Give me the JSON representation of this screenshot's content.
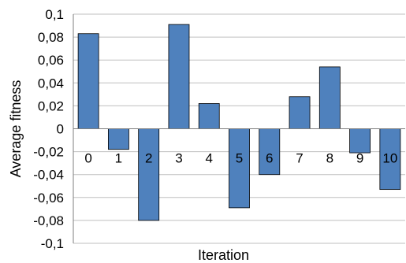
{
  "chart_data": {
    "type": "bar",
    "title": "",
    "xlabel": "Iteration",
    "ylabel": "Average fitness",
    "categories": [
      "0",
      "1",
      "2",
      "3",
      "4",
      "5",
      "6",
      "7",
      "8",
      "9",
      "10"
    ],
    "values": [
      0.083,
      -0.018,
      -0.08,
      0.091,
      0.022,
      -0.069,
      -0.04,
      0.028,
      0.054,
      -0.021,
      -0.053
    ],
    "ylim": [
      -0.1,
      0.1
    ],
    "yticks": [
      0.1,
      0.08,
      0.06,
      0.04,
      0.02,
      0,
      -0.02,
      -0.04,
      -0.06,
      -0.08,
      -0.1
    ],
    "ytick_labels": [
      "0,1",
      "0,08",
      "0,06",
      "0,04",
      "0,02",
      "0",
      "-0,02",
      "-0,04",
      "-0,06",
      "-0,08",
      "-0,1"
    ],
    "grid": true,
    "legend": "none",
    "colors": {
      "bar_fill": "#4f81bd",
      "bar_stroke": "#000000",
      "grid": "#bfbfbf",
      "axis": "#7f7f7f"
    }
  }
}
